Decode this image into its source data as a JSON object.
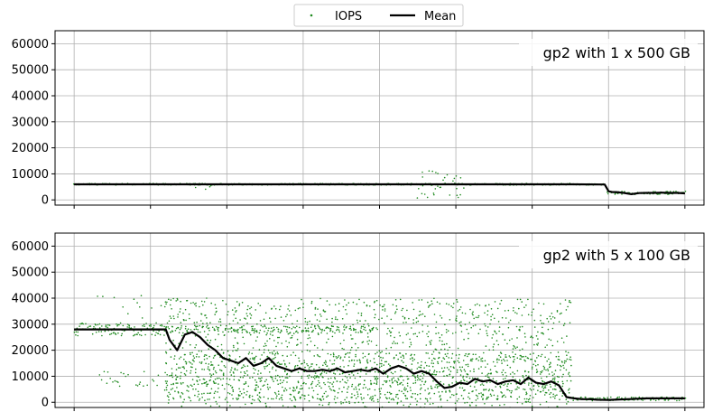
{
  "chart_data": [
    {
      "type": "scatter",
      "title": "gp2 with 1 x 500 GB",
      "ylim": [
        -2000,
        65000
      ],
      "yticks": [
        0,
        10000,
        20000,
        30000,
        40000,
        50000,
        60000
      ],
      "ytick_labels": [
        "0",
        "10000",
        "20000",
        "30000",
        "40000",
        "50000",
        "60000"
      ],
      "xlim": [
        -5,
        165
      ],
      "grid": true,
      "title_placement": "top-right",
      "series": [
        {
          "name": "Mean",
          "style": "line",
          "color": "#000000",
          "x": [
            0,
            10,
            20,
            30,
            40,
            50,
            60,
            70,
            80,
            90,
            100,
            110,
            120,
            130,
            139,
            140,
            141,
            142,
            144,
            146,
            148,
            150,
            152,
            154,
            156,
            158,
            160
          ],
          "y": [
            6000,
            6000,
            6000,
            6000,
            6000,
            6000,
            6000,
            6000,
            6000,
            6000,
            6000,
            6000,
            6000,
            6000,
            5900,
            3300,
            3000,
            3000,
            2700,
            2200,
            2600,
            2700,
            2700,
            2800,
            2700,
            2700,
            2500
          ]
        },
        {
          "name": "IOPS",
          "style": "points",
          "color": "#1f8a1f",
          "bands": [
            {
              "x": [
                0,
                139
              ],
              "center": 6000,
              "spread": 300,
              "density": 4
            },
            {
              "x": [
                139,
                160
              ],
              "center": 2700,
              "spread": 600,
              "density": 4
            },
            {
              "x": [
                90,
                102
              ],
              "center": 6000,
              "spread": 5500,
              "density": 3
            },
            {
              "x": [
                32,
                36
              ],
              "center": 5500,
              "spread": 1500,
              "density": 2
            }
          ]
        }
      ]
    },
    {
      "type": "scatter",
      "title": "gp2 with 5 x 100 GB",
      "ylim": [
        -2000,
        65000
      ],
      "yticks": [
        0,
        10000,
        20000,
        30000,
        40000,
        50000,
        60000
      ],
      "ytick_labels": [
        "0",
        "10000",
        "20000",
        "30000",
        "40000",
        "50000",
        "60000"
      ],
      "xlim": [
        -5,
        165
      ],
      "grid": true,
      "title_placement": "top-right",
      "series": [
        {
          "name": "Mean",
          "style": "line",
          "color": "#000000",
          "x": [
            0,
            5,
            10,
            15,
            20,
            24,
            25,
            27,
            29,
            31,
            33,
            35,
            37,
            39,
            41,
            43,
            45,
            47,
            49,
            51,
            53,
            55,
            57,
            59,
            61,
            63,
            65,
            67,
            69,
            71,
            73,
            75,
            77,
            79,
            81,
            83,
            85,
            87,
            89,
            91,
            93,
            95,
            97,
            99,
            101,
            103,
            105,
            107,
            109,
            111,
            113,
            115,
            117,
            119,
            121,
            123,
            125,
            127,
            129,
            131,
            133,
            135,
            137,
            140,
            145,
            150,
            155,
            160
          ],
          "y": [
            28000,
            28000,
            28000,
            28000,
            28000,
            28000,
            24000,
            20000,
            26000,
            27000,
            25000,
            22000,
            20000,
            17000,
            16000,
            15000,
            17000,
            14000,
            15000,
            17000,
            14000,
            13000,
            12000,
            13000,
            12000,
            12000,
            12500,
            12000,
            13000,
            11500,
            12000,
            12500,
            12000,
            13000,
            11000,
            13000,
            14000,
            13000,
            11000,
            12000,
            11000,
            8000,
            5500,
            6000,
            7500,
            7000,
            9000,
            8000,
            8500,
            7000,
            8000,
            8500,
            7000,
            9500,
            7500,
            7000,
            8000,
            6500,
            2000,
            1500,
            1200,
            1200,
            1000,
            900,
            1200,
            1500,
            1500,
            1500
          ]
        },
        {
          "name": "IOPS",
          "style": "points",
          "color": "#1f8a1f",
          "bands": [
            {
              "x": [
                0,
                24
              ],
              "center": 28000,
              "spread": 2500,
              "density": 6
            },
            {
              "x": [
                6,
                24
              ],
              "center": 33000,
              "spread": 8000,
              "density": 2
            },
            {
              "x": [
                6,
                24
              ],
              "center": 9000,
              "spread": 3000,
              "density": 2
            },
            {
              "x": [
                24,
                130
              ],
              "center": 18000,
              "spread": 22000,
              "density": 18
            },
            {
              "x": [
                24,
                130
              ],
              "center": 10000,
              "spread": 9000,
              "density": 10
            },
            {
              "x": [
                24,
                80
              ],
              "center": 28000,
              "spread": 1500,
              "density": 4
            },
            {
              "x": [
                130,
                160
              ],
              "center": 1300,
              "spread": 700,
              "density": 4
            }
          ]
        }
      ]
    }
  ],
  "legend": {
    "placement": "top-center",
    "items": [
      {
        "label": "IOPS",
        "marker": "dot",
        "color": "#1f8a1f"
      },
      {
        "label": "Mean",
        "marker": "line",
        "color": "#000000"
      }
    ]
  }
}
